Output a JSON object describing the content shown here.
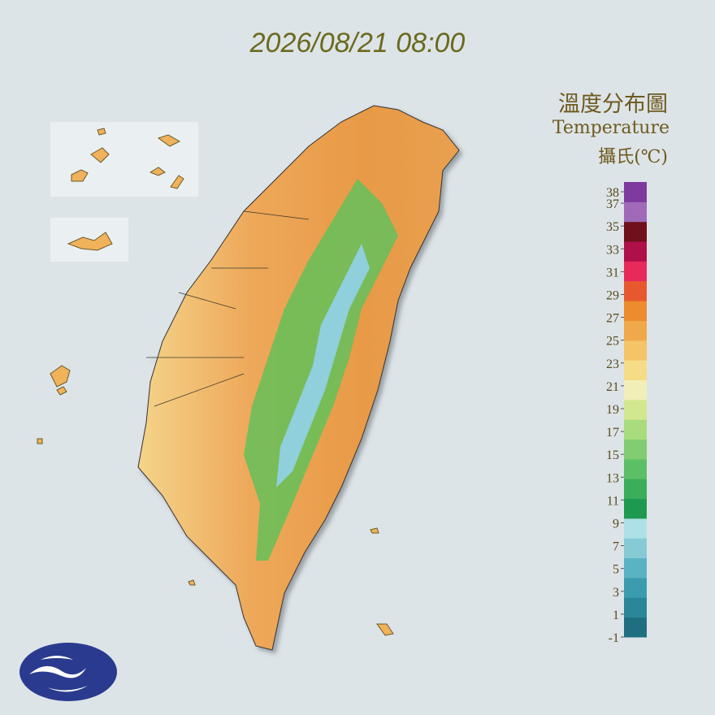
{
  "header": {
    "timestamp": "2026/08/21 08:00"
  },
  "title": {
    "zh": "溫度分布圖",
    "en": "Temperature",
    "unit": "攝氏(℃)"
  },
  "legend": {
    "ticks": [
      38,
      37,
      35,
      33,
      31,
      29,
      27,
      25,
      23,
      21,
      19,
      17,
      15,
      13,
      11,
      9,
      7,
      5,
      3,
      1,
      -1
    ],
    "colors": [
      "#1f6f80",
      "#2a8698",
      "#3a9cae",
      "#5ab3c2",
      "#86cad6",
      "#aee0e8",
      "#1e9a50",
      "#3aae5a",
      "#5cbf66",
      "#82cd72",
      "#a8dc7e",
      "#d2e88e",
      "#f2eeb8",
      "#f6dc86",
      "#f4c466",
      "#f0a84a",
      "#ec8c2e",
      "#e8582e",
      "#e82a5a",
      "#b0104a",
      "#70101a",
      "#a06ab8",
      "#7e3aa0"
    ]
  }
}
